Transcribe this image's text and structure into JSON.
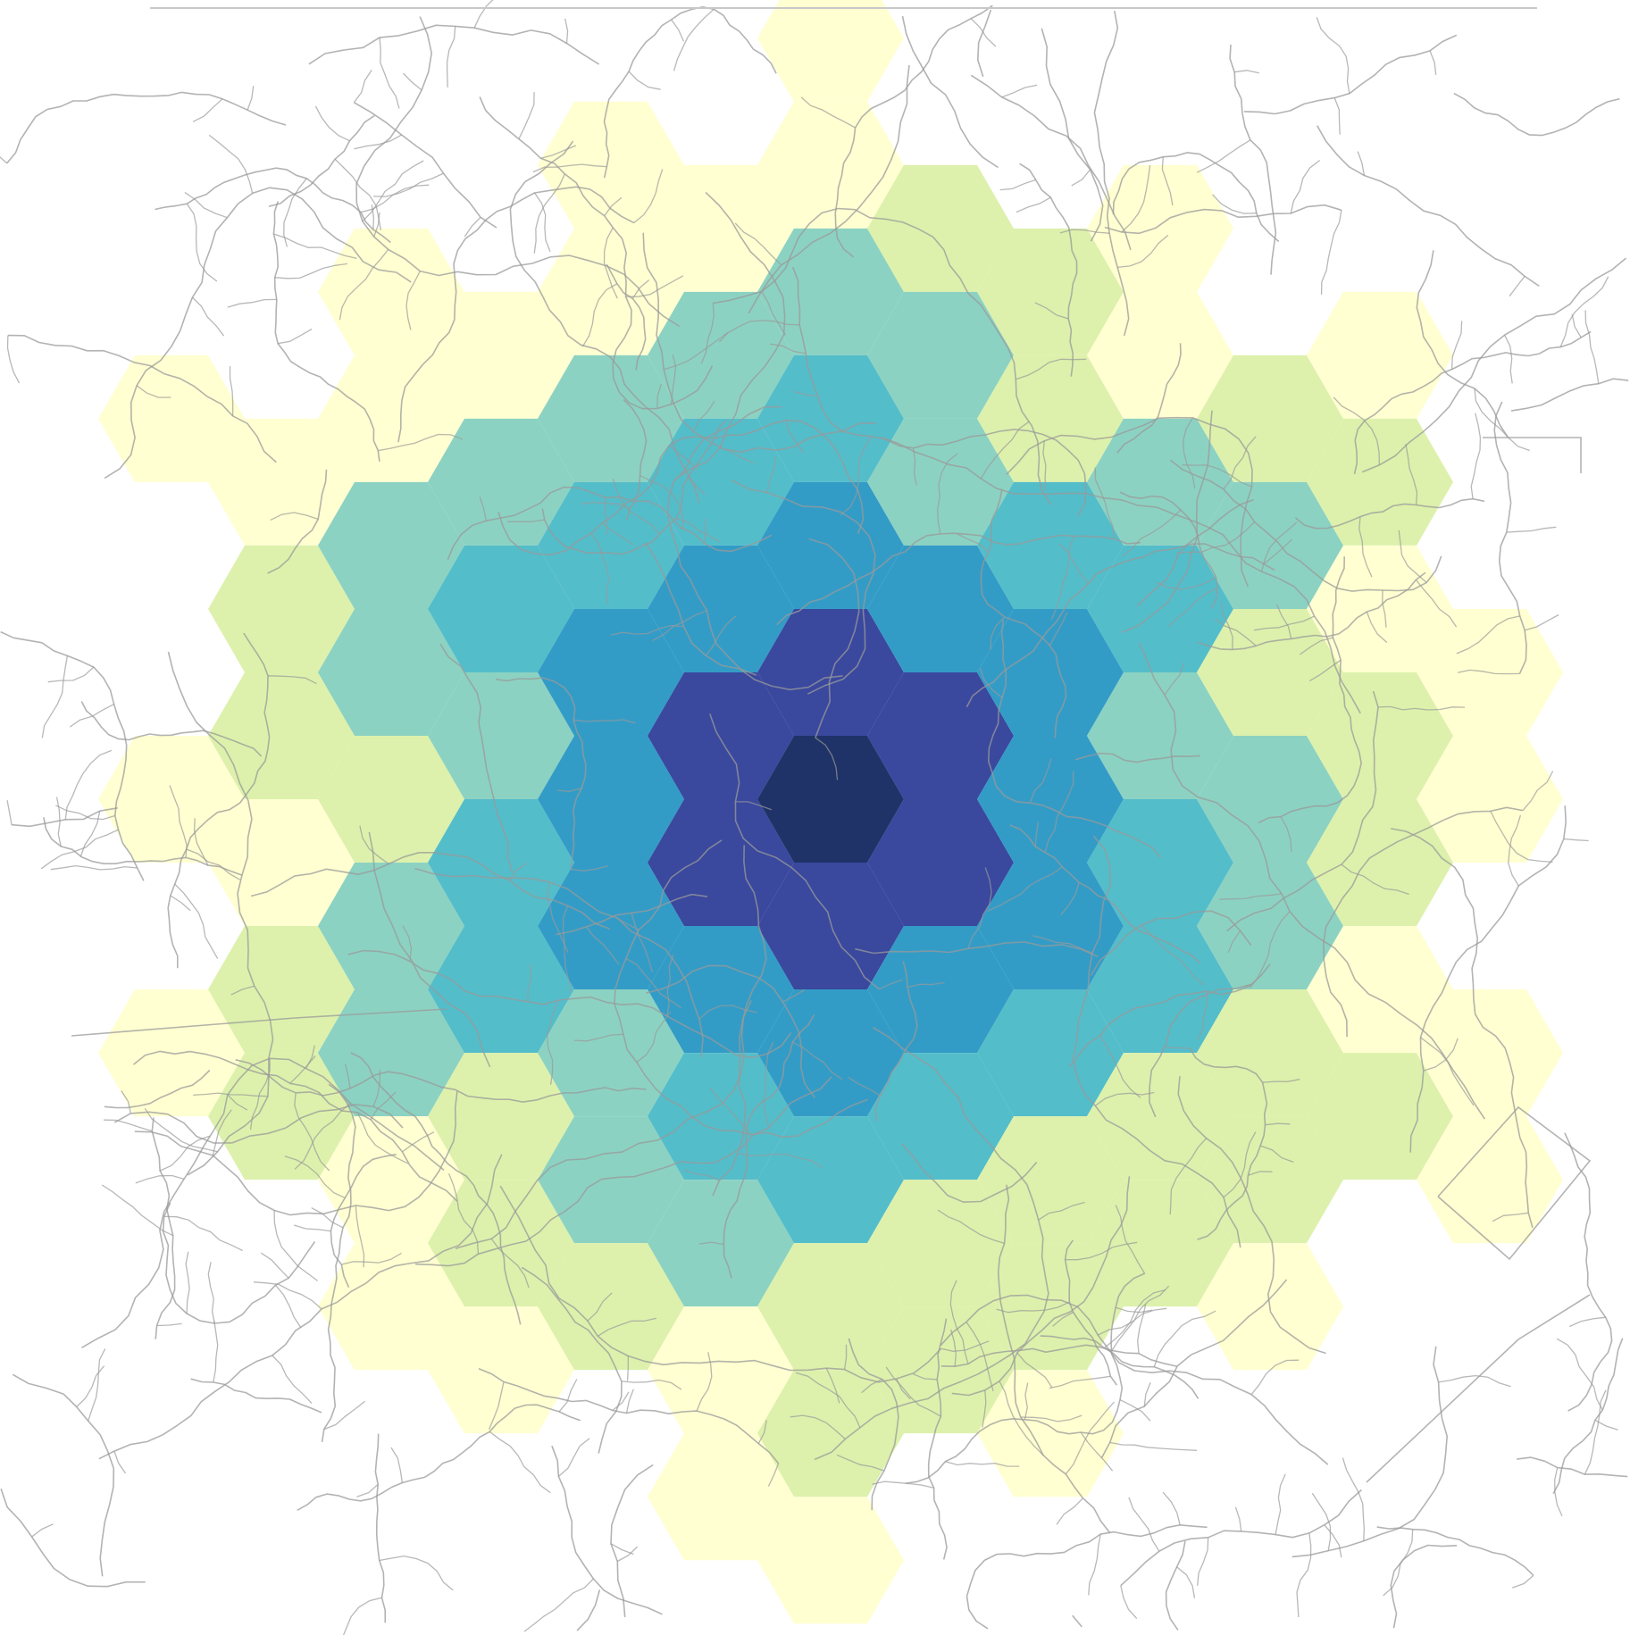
{
  "map": {
    "type": "hexbin-density-map",
    "basemap": "road-network-lines",
    "basemap_color": "#9a9a9a",
    "legend": "none",
    "color_scale": [
      "#ffffcc",
      "#d9f0a3",
      "#7fcdbb",
      "#41b6c4",
      "#1d91c0",
      "#253494",
      "#081d58"
    ],
    "color_scale_levels": [
      0,
      1,
      2,
      3,
      4,
      5,
      6
    ],
    "hex_opacity": 0.9,
    "center_level": 6
  }
}
